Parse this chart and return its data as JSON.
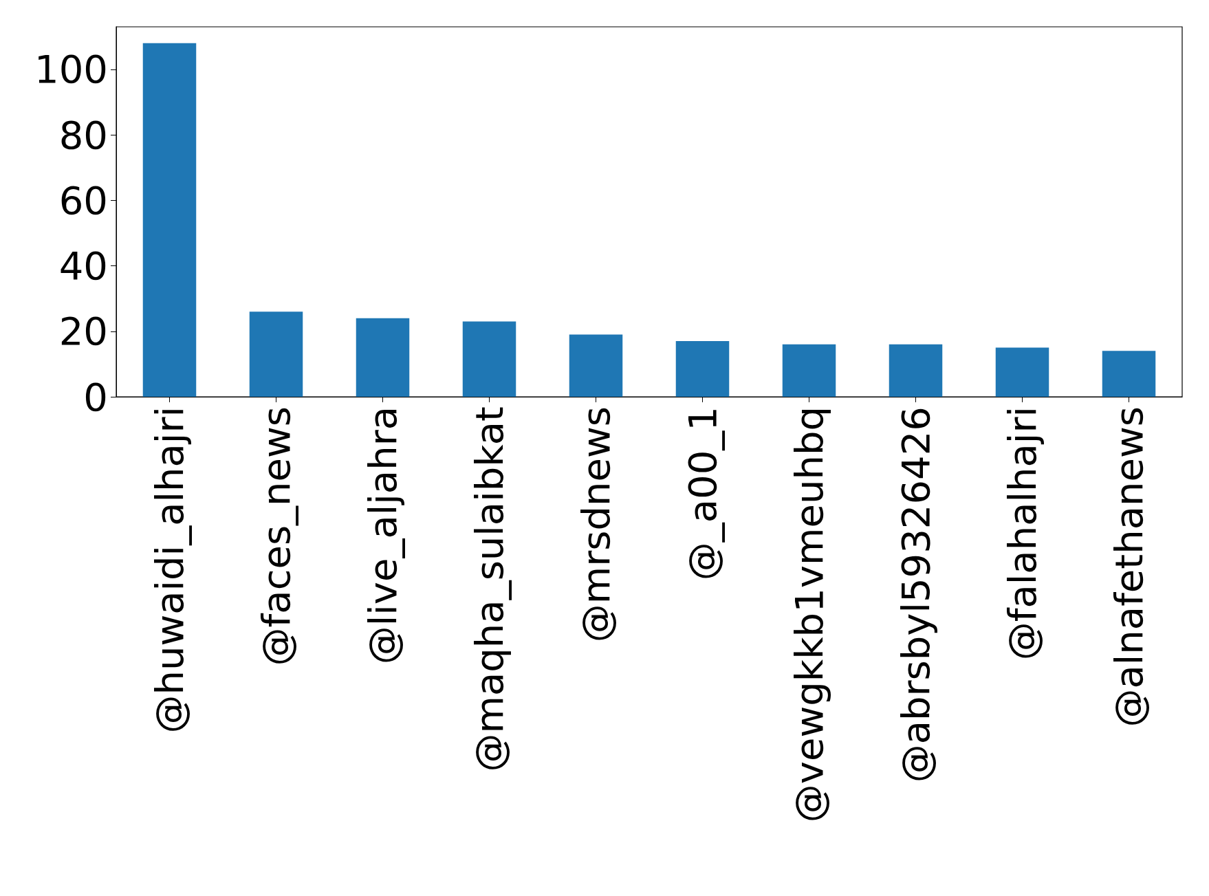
{
  "chart_data": {
    "type": "bar",
    "categories": [
      "@huwaidi_alhajri",
      "@faces_news",
      "@live_aljahra",
      "@maqha_sulaibkat",
      "@mrsdnews",
      "@_a00_1",
      "@vewgkkb1vmeuhbq",
      "@abrsbyl59326426",
      "@falahalhajri",
      "@alnafethanews"
    ],
    "values": [
      108,
      26,
      24,
      23,
      19,
      17,
      16,
      16,
      15,
      14
    ],
    "color": "#1f77b4",
    "ylim": [
      0,
      113
    ],
    "yticks": [
      0,
      20,
      40,
      60,
      80,
      100
    ],
    "grid": false
  }
}
